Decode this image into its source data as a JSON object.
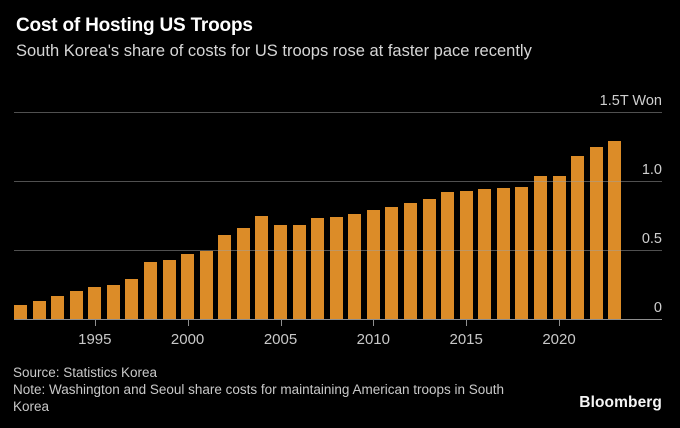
{
  "header": {
    "title": "Cost of Hosting US Troops",
    "subtitle": "South Korea's share of costs for US troops rose at faster pace recently"
  },
  "chart_data": {
    "type": "bar",
    "title": "Cost of Hosting US Troops",
    "subtitle": "South Korea's share of costs for US troops rose at faster pace recently",
    "series_name": "South Korea's share of costs for US troops (trillion won)",
    "unit": "T Won",
    "categories": [
      1991,
      1992,
      1993,
      1994,
      1995,
      1996,
      1997,
      1998,
      1999,
      2000,
      2001,
      2002,
      2003,
      2004,
      2005,
      2006,
      2007,
      2008,
      2009,
      2010,
      2011,
      2012,
      2013,
      2014,
      2015,
      2016,
      2017,
      2018,
      2019,
      2020,
      2021,
      2022,
      2023
    ],
    "values": [
      0.1,
      0.13,
      0.17,
      0.2,
      0.23,
      0.25,
      0.29,
      0.41,
      0.43,
      0.47,
      0.49,
      0.61,
      0.66,
      0.75,
      0.68,
      0.68,
      0.73,
      0.74,
      0.76,
      0.79,
      0.81,
      0.84,
      0.87,
      0.92,
      0.93,
      0.94,
      0.95,
      0.96,
      1.04,
      1.04,
      1.18,
      1.25,
      1.29
    ],
    "ylim": [
      0,
      1.5
    ],
    "y_ticks": [
      {
        "value": 0,
        "label": "0"
      },
      {
        "value": 0.5,
        "label": "0.5"
      },
      {
        "value": 1,
        "label": "1.0"
      },
      {
        "value": 1.5,
        "label": "1.5T Won"
      }
    ],
    "x_ticks": [
      1995,
      2000,
      2005,
      2010,
      2015,
      2020
    ],
    "grid": true,
    "legend": "none",
    "bar_color": "#DC8C28",
    "background_color": "#000000"
  },
  "footer": {
    "source": "Source: Statistics Korea",
    "note": "Note: Washington and Seoul share costs for maintaining American troops in South Korea",
    "brand": "Bloomberg"
  }
}
